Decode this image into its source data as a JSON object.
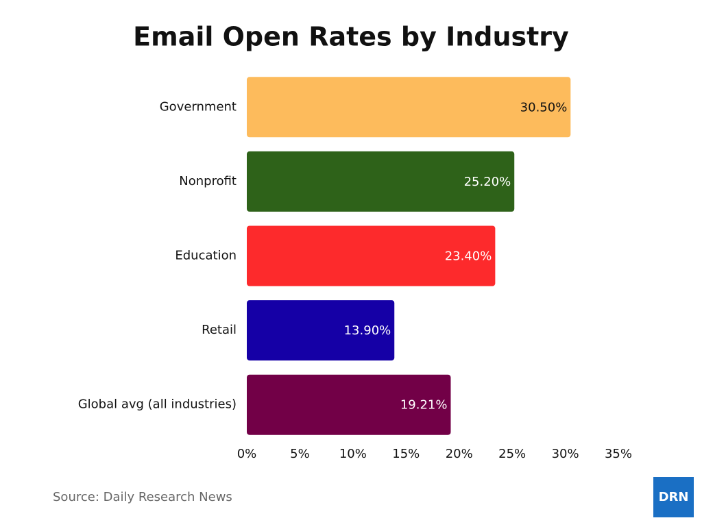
{
  "chart_data": {
    "type": "bar",
    "orientation": "horizontal",
    "title": "Email Open Rates by Industry",
    "categories": [
      "Government",
      "Nonprofit",
      "Education",
      "Retail",
      "Global avg (all industries)"
    ],
    "values": [
      30.5,
      25.2,
      23.4,
      13.9,
      19.21
    ],
    "value_labels": [
      "30.50%",
      "25.20%",
      "23.40%",
      "13.90%",
      "19.21%"
    ],
    "colors": [
      "#fdbb5c",
      "#2e6219",
      "#fd2a2c",
      "#1500a6",
      "#720047"
    ],
    "xlim": [
      0,
      35
    ],
    "xticks": [
      {
        "value": 0,
        "label": "0%"
      },
      {
        "value": 5,
        "label": "5%"
      },
      {
        "value": 10,
        "label": "10%"
      },
      {
        "value": 15,
        "label": "15%"
      },
      {
        "value": 20,
        "label": "20%"
      },
      {
        "value": 25,
        "label": "25%"
      },
      {
        "value": 30,
        "label": "30%"
      },
      {
        "value": 35,
        "label": "35%"
      }
    ],
    "grid": false,
    "source": "Source: Daily Research News",
    "logo": "DRN"
  }
}
